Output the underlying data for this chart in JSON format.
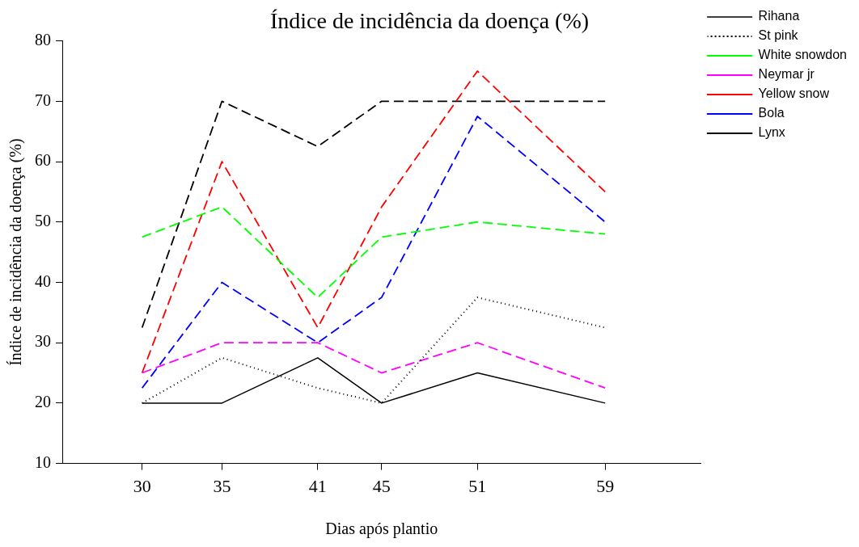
{
  "chart_data": {
    "type": "line",
    "title": "Índice de incidência da doença (%)",
    "xlabel": "Dias após plantio",
    "ylabel": "Índice de incidência da doença (%)",
    "x": [
      30,
      35,
      41,
      45,
      51,
      59
    ],
    "xlim": [
      25,
      65
    ],
    "xticks": [
      30,
      35,
      41,
      45,
      51,
      59
    ],
    "ylim": [
      10,
      80
    ],
    "yticks": [
      10,
      20,
      30,
      40,
      50,
      60,
      70,
      80
    ],
    "grid": false,
    "legend": "right",
    "marker": "none",
    "series": [
      {
        "name": "Rihana",
        "color": "#000000",
        "line_style": "solid",
        "values": [
          20,
          20,
          27.5,
          20,
          25,
          20
        ]
      },
      {
        "name": "St pink",
        "color": "#000000",
        "line_style": "dotted",
        "values": [
          20,
          27.5,
          22.5,
          20,
          37.5,
          32.5
        ]
      },
      {
        "name": "White snowdon",
        "color": "#00ff00",
        "line_style": "dashed",
        "values": [
          47.5,
          52.5,
          37.5,
          47.5,
          50,
          48
        ]
      },
      {
        "name": "Neymar jr",
        "color": "#ff00ff",
        "line_style": "dashed",
        "values": [
          25,
          30,
          30,
          25,
          30,
          22.5
        ]
      },
      {
        "name": "Yellow snow",
        "color": "#ff0000",
        "line_style": "dashed",
        "values": [
          25,
          60,
          32.5,
          52.5,
          75,
          55
        ]
      },
      {
        "name": "Bola",
        "color": "#0000ff",
        "line_style": "dashed",
        "values": [
          22.5,
          40,
          30,
          37.5,
          67.5,
          50
        ]
      },
      {
        "name": "Lynx",
        "color": "#000000",
        "line_style": "dashed",
        "values": [
          32.5,
          70,
          62.5,
          70,
          70,
          70
        ]
      }
    ]
  }
}
